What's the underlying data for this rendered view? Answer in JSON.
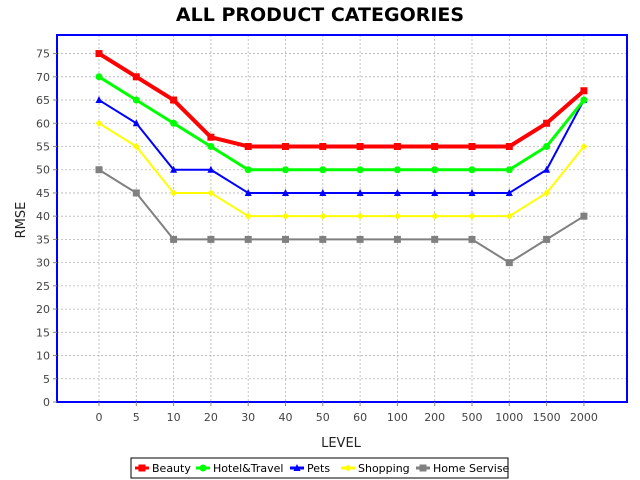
{
  "chart_data": {
    "type": "line",
    "title": "ALL PRODUCT CATEGORIES",
    "xlabel": "LEVEL",
    "ylabel": "RMSE",
    "categories": [
      "0",
      "5",
      "10",
      "20",
      "30",
      "40",
      "50",
      "60",
      "100",
      "200",
      "500",
      "1000",
      "1500",
      "2000"
    ],
    "yticks": [
      0,
      5,
      10,
      15,
      20,
      25,
      30,
      35,
      40,
      45,
      50,
      55,
      60,
      65,
      70,
      75
    ],
    "ylim": [
      0,
      79
    ],
    "grid": true,
    "legend_position": "bottom",
    "series": [
      {
        "name": "Beauty",
        "color": "#ff0000",
        "marker": "square",
        "values": [
          75,
          70,
          65,
          57,
          55,
          55,
          55,
          55,
          55,
          55,
          55,
          55,
          60,
          67
        ]
      },
      {
        "name": "Hotel&Travel",
        "color": "#00ff00",
        "marker": "circle",
        "values": [
          70,
          65,
          60,
          55,
          50,
          50,
          50,
          50,
          50,
          50,
          50,
          50,
          55,
          65
        ]
      },
      {
        "name": "Pets",
        "color": "#0000ff",
        "marker": "triangle",
        "values": [
          65,
          60,
          50,
          50,
          45,
          45,
          45,
          45,
          45,
          45,
          45,
          45,
          50,
          65
        ]
      },
      {
        "name": "Shopping",
        "color": "#ffff00",
        "marker": "diamond",
        "values": [
          60,
          55,
          45,
          45,
          40,
          40,
          40,
          40,
          40,
          40,
          40,
          40,
          45,
          55
        ]
      },
      {
        "name": "Home Servise",
        "color": "#808080",
        "marker": "rect",
        "values": [
          50,
          45,
          35,
          35,
          35,
          35,
          35,
          35,
          35,
          35,
          35,
          30,
          35,
          40
        ]
      }
    ]
  }
}
